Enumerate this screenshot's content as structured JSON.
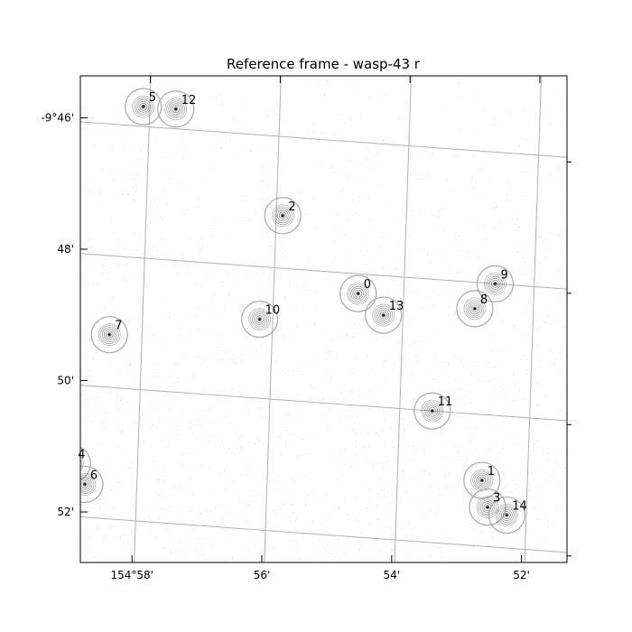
{
  "chart_data": {
    "type": "scatter",
    "title": "Reference frame - wasp-43 r",
    "projection": "world-coordinate-grid",
    "grid": true,
    "ra_ticks": [
      {
        "label": "154°58'",
        "ra_min": 58
      },
      {
        "label": "56'",
        "ra_min": 56
      },
      {
        "label": "54'",
        "ra_min": 54
      },
      {
        "label": "52'",
        "ra_min": 52
      }
    ],
    "dec_ticks": [
      {
        "label": "-9°46'",
        "dec_min": 46
      },
      {
        "label": "48'",
        "dec_min": 48
      },
      {
        "label": "50'",
        "dec_min": 50
      },
      {
        "label": "52'",
        "dec_min": 52
      }
    ],
    "stars": [
      {
        "id": "0",
        "ra_min": 54.7,
        "dec_min": 48.3
      },
      {
        "id": "1",
        "ra_min": 52.7,
        "dec_min": 51.0
      },
      {
        "id": "2",
        "ra_min": 55.9,
        "dec_min": 47.2
      },
      {
        "id": "3",
        "ra_min": 52.6,
        "dec_min": 51.4
      },
      {
        "id": "4",
        "ra_min": 59.0,
        "dec_min": 51.2
      },
      {
        "id": "5",
        "ra_min": 58.1,
        "dec_min": 45.7
      },
      {
        "id": "6",
        "ra_min": 58.8,
        "dec_min": 51.5
      },
      {
        "id": "7",
        "ra_min": 58.5,
        "dec_min": 49.2
      },
      {
        "id": "8",
        "ra_min": 52.9,
        "dec_min": 48.4
      },
      {
        "id": "9",
        "ra_min": 52.6,
        "dec_min": 48.0
      },
      {
        "id": "10",
        "ra_min": 56.2,
        "dec_min": 48.8
      },
      {
        "id": "11",
        "ra_min": 53.5,
        "dec_min": 50.0
      },
      {
        "id": "12",
        "ra_min": 57.6,
        "dec_min": 45.7
      },
      {
        "id": "13",
        "ra_min": 54.3,
        "dec_min": 48.6
      },
      {
        "id": "14",
        "ra_min": 52.3,
        "dec_min": 51.5
      }
    ]
  },
  "colors": {
    "grid": "#b0b0b0",
    "star_circle": "#a8a8a8",
    "contour": "#555555",
    "noise": "#8c8c8c"
  }
}
